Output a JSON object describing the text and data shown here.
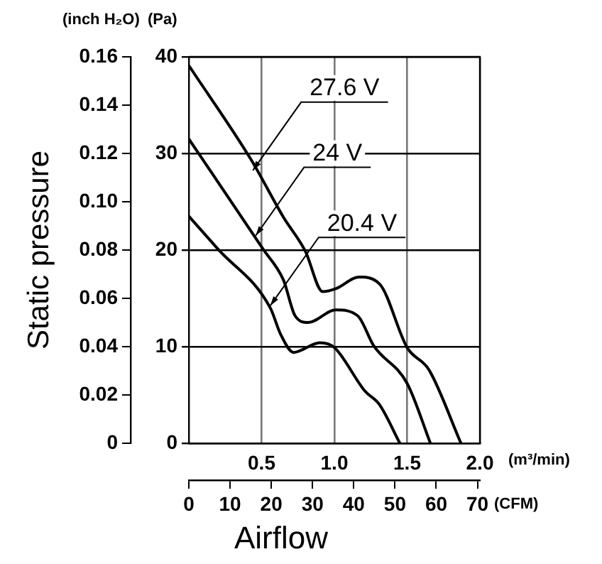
{
  "chart_data": {
    "type": "line",
    "xlabel": "Airflow",
    "ylabel": "Static pressure",
    "xlim": [
      0,
      2
    ],
    "xticks": [
      0.5,
      {
        "value": 1,
        "label": "1.0"
      },
      1.5,
      {
        "value": 2,
        "label": "2.0"
      }
    ],
    "x2lim": [
      0,
      70.6
    ],
    "x2ticks": [
      0,
      10,
      20,
      30,
      40,
      50,
      60,
      70
    ],
    "y2lim": [
      0,
      40
    ],
    "y2ticks": [
      0,
      10,
      20,
      30,
      40
    ],
    "ylim": [
      0,
      0.16
    ],
    "yticks": [
      0,
      0.02,
      0.04,
      0.06,
      0.08,
      {
        "value": 0.1,
        "label": "0.10"
      },
      0.12,
      0.14,
      0.16
    ],
    "grid": true,
    "legend": false,
    "marker": "none",
    "line_style": "solid",
    "series": [
      {
        "color": "#000000",
        "axis": "y2",
        "x": [
          0,
          0.43,
          0.65,
          0.8,
          0.92,
          1.01,
          1.17,
          1.31,
          1.5,
          1.65,
          1.87
        ],
        "values": [
          39.1,
          29.3,
          23.4,
          19.9,
          15.7,
          16.0,
          17.2,
          16.5,
          9.9,
          7.6,
          0
        ]
      },
      {
        "color": "#000000",
        "axis": "y2",
        "x": [
          0,
          0.51,
          0.65,
          0.73,
          0.82,
          1.01,
          1.16,
          1.27,
          1.5,
          1.66
        ],
        "values": [
          31.5,
          20.1,
          16.9,
          13.2,
          12.5,
          13.8,
          13.2,
          10.1,
          6.2,
          0
        ]
      },
      {
        "color": "#000000",
        "axis": "y2",
        "x": [
          0,
          0.2,
          0.56,
          0.63,
          0.72,
          0.9,
          1.0,
          1.21,
          1.31,
          1.45
        ],
        "values": [
          23.5,
          20.1,
          14.0,
          11.3,
          9.4,
          10.4,
          9.9,
          5.4,
          4.0,
          0
        ]
      }
    ],
    "annotations": [
      "(inch H₂O)",
      "(Pa)",
      "(m³/min)",
      "(CFM)",
      {
        "text": "27.6 V",
        "x": 0.44,
        "y": 0.113
      },
      {
        "text": "24 V",
        "x": 0.46,
        "y": 0.086
      },
      {
        "text": "20.4 V",
        "x": 0.56,
        "y": 0.057
      }
    ]
  }
}
